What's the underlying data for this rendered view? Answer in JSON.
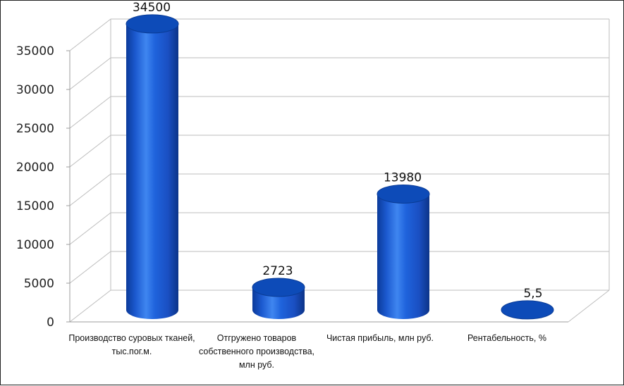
{
  "chart_data": {
    "type": "bar",
    "style": "3d-cylinder",
    "categories": [
      "Производство суровых тканей, тыс.пог.м.",
      "Отгружено товаров собственного производства, млн руб.",
      "Чистая прибыль, млн руб.",
      "Рентабельность, %"
    ],
    "values": [
      34500,
      2723,
      13980,
      5.5
    ],
    "data_labels": [
      "34500",
      "2723",
      "13980",
      "5,5"
    ],
    "yticks": [
      0,
      5000,
      10000,
      15000,
      20000,
      25000,
      30000,
      35000
    ],
    "ylim": [
      0,
      35000
    ],
    "grid": true,
    "legend": "none",
    "bar_color": "#1f5fd6"
  }
}
